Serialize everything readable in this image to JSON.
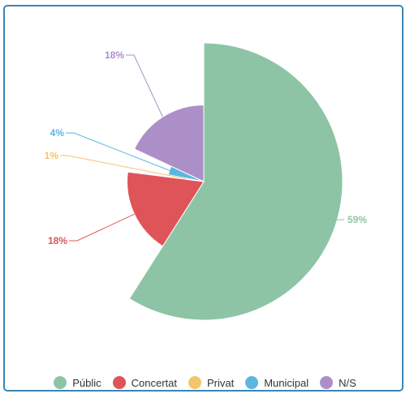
{
  "chart_data": {
    "type": "pie",
    "variant": "variable-radius",
    "categories": [
      "Públic",
      "Concertat",
      "Privat",
      "Municipal",
      "N/S"
    ],
    "values": [
      59,
      18,
      1,
      4,
      18
    ],
    "labels": [
      "59%",
      "18%",
      "1%",
      "4%",
      "18%"
    ],
    "colors": [
      "#8ec4a6",
      "#de5458",
      "#f2c66d",
      "#5db6e0",
      "#ad8fc8"
    ],
    "legend_position": "bottom",
    "start_angle_deg": 0,
    "direction": "clockwise"
  },
  "legend": {
    "items": [
      {
        "label": "Públic",
        "color": "#8ec4a6"
      },
      {
        "label": "Concertat",
        "color": "#de5458"
      },
      {
        "label": "Privat",
        "color": "#f2c66d"
      },
      {
        "label": "Municipal",
        "color": "#5db6e0"
      },
      {
        "label": "N/S",
        "color": "#ad8fc8"
      }
    ]
  }
}
